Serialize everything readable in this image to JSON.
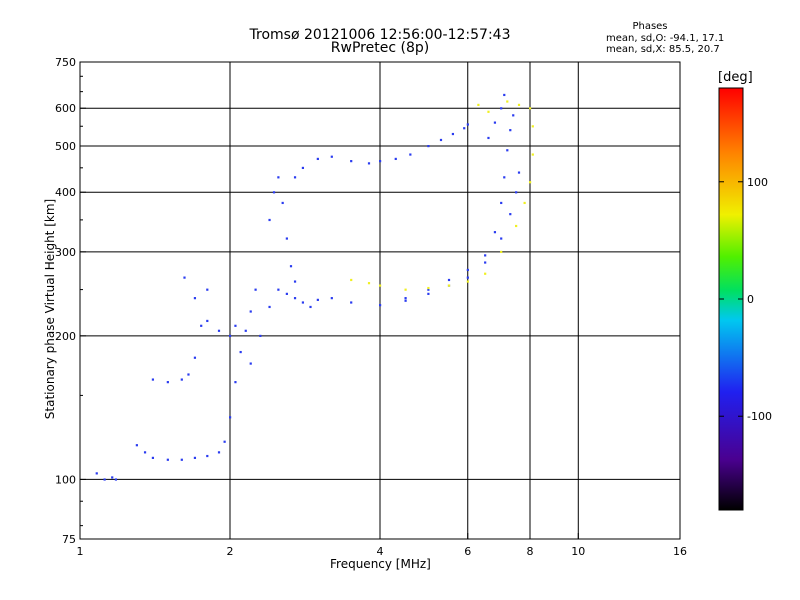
{
  "chart_data": {
    "type": "scatter",
    "title": "Tromsø 20121006 12:56:00-12:57:43",
    "subtitle": "RwPretec (8p)",
    "xlabel": "Frequency [MHz]",
    "ylabel": "Stationary phase Virtual Height [km]",
    "x_scale": "log",
    "y_scale": "log",
    "xlim": [
      1,
      16
    ],
    "ylim": [
      75,
      750
    ],
    "x_ticks": [
      1,
      2,
      4,
      6,
      8,
      10,
      16
    ],
    "x_tick_labels": [
      "1",
      "2",
      "4",
      "6",
      "8",
      "10",
      "16"
    ],
    "y_ticks": [
      75,
      100,
      200,
      300,
      400,
      500,
      600,
      750
    ],
    "y_tick_labels": [
      "75",
      "100",
      "200",
      "300",
      "400",
      "500",
      "600",
      "750"
    ],
    "x_gridlines": [
      2,
      4,
      6,
      8,
      10
    ],
    "y_gridlines": [
      100,
      200,
      300,
      400,
      500,
      600
    ],
    "grid": true,
    "colorbar": {
      "label": "[deg]",
      "range": [
        -180,
        180
      ],
      "ticks": [
        100,
        0,
        -100
      ],
      "tick_labels": [
        "100",
        "0",
        "-100"
      ],
      "colormap": "rainbow (black-purple-blue-cyan-green-yellow-orange-red)"
    },
    "phase_stats": {
      "heading": "Phases",
      "line_o": "mean, sd,O: -94.1, 17.1",
      "line_x": "mean, sd,X: 85.5, 20.7"
    },
    "series": [
      {
        "mode": "O",
        "phase_color": "#2a3cf0",
        "points": [
          [
            1.08,
            103
          ],
          [
            1.12,
            100
          ],
          [
            1.16,
            101
          ],
          [
            1.18,
            100
          ],
          [
            1.3,
            118
          ],
          [
            1.35,
            114
          ],
          [
            1.4,
            111
          ],
          [
            1.5,
            110
          ],
          [
            1.6,
            110
          ],
          [
            1.7,
            111
          ],
          [
            1.8,
            112
          ],
          [
            1.9,
            114
          ],
          [
            1.95,
            120
          ],
          [
            2.0,
            135
          ],
          [
            2.05,
            160
          ],
          [
            2.1,
            185
          ],
          [
            2.15,
            205
          ],
          [
            2.2,
            225
          ],
          [
            2.25,
            250
          ],
          [
            1.4,
            162
          ],
          [
            1.5,
            160
          ],
          [
            1.6,
            162
          ],
          [
            1.65,
            166
          ],
          [
            1.7,
            180
          ],
          [
            1.75,
            210
          ],
          [
            1.8,
            250
          ],
          [
            1.62,
            265
          ],
          [
            1.7,
            240
          ],
          [
            1.8,
            215
          ],
          [
            1.9,
            205
          ],
          [
            2.0,
            200
          ],
          [
            2.05,
            210
          ],
          [
            2.2,
            175
          ],
          [
            2.3,
            200
          ],
          [
            2.4,
            230
          ],
          [
            2.5,
            250
          ],
          [
            2.6,
            245
          ],
          [
            2.7,
            240
          ],
          [
            2.8,
            235
          ],
          [
            2.9,
            230
          ],
          [
            3.0,
            238
          ],
          [
            3.2,
            240
          ],
          [
            3.5,
            235
          ],
          [
            4.0,
            232
          ],
          [
            4.5,
            237
          ],
          [
            5.0,
            245
          ],
          [
            5.5,
            255
          ],
          [
            6.0,
            265
          ],
          [
            6.5,
            285
          ],
          [
            7.0,
            320
          ],
          [
            7.3,
            360
          ],
          [
            7.5,
            400
          ],
          [
            7.6,
            440
          ],
          [
            4.5,
            240
          ],
          [
            5.0,
            250
          ],
          [
            5.5,
            262
          ],
          [
            6.0,
            275
          ],
          [
            6.5,
            295
          ],
          [
            6.8,
            330
          ],
          [
            7.0,
            380
          ],
          [
            7.1,
            430
          ],
          [
            7.2,
            490
          ],
          [
            7.3,
            540
          ],
          [
            7.4,
            580
          ],
          [
            2.4,
            350
          ],
          [
            2.45,
            400
          ],
          [
            2.5,
            430
          ],
          [
            2.55,
            380
          ],
          [
            2.6,
            320
          ],
          [
            2.65,
            280
          ],
          [
            2.7,
            260
          ],
          [
            2.7,
            430
          ],
          [
            2.8,
            450
          ],
          [
            3.0,
            470
          ],
          [
            3.2,
            475
          ],
          [
            3.5,
            465
          ],
          [
            3.8,
            460
          ],
          [
            4.0,
            465
          ],
          [
            4.3,
            470
          ],
          [
            4.6,
            480
          ],
          [
            5.0,
            500
          ],
          [
            5.3,
            515
          ],
          [
            5.6,
            530
          ],
          [
            5.9,
            545
          ],
          [
            6.0,
            555
          ],
          [
            6.6,
            520
          ],
          [
            6.8,
            560
          ],
          [
            7.0,
            600
          ],
          [
            7.1,
            640
          ]
        ]
      },
      {
        "mode": "X",
        "phase_color": "#f0f020",
        "points": [
          [
            3.5,
            262
          ],
          [
            3.8,
            258
          ],
          [
            4.0,
            255
          ],
          [
            4.5,
            250
          ],
          [
            5.0,
            252
          ],
          [
            5.5,
            255
          ],
          [
            6.0,
            260
          ],
          [
            6.5,
            270
          ],
          [
            7.0,
            300
          ],
          [
            7.5,
            340
          ],
          [
            7.8,
            380
          ],
          [
            8.0,
            420
          ],
          [
            8.1,
            480
          ],
          [
            8.1,
            550
          ],
          [
            8.0,
            600
          ],
          [
            6.3,
            610
          ],
          [
            6.6,
            590
          ],
          [
            7.2,
            620
          ],
          [
            7.6,
            610
          ]
        ]
      }
    ]
  }
}
